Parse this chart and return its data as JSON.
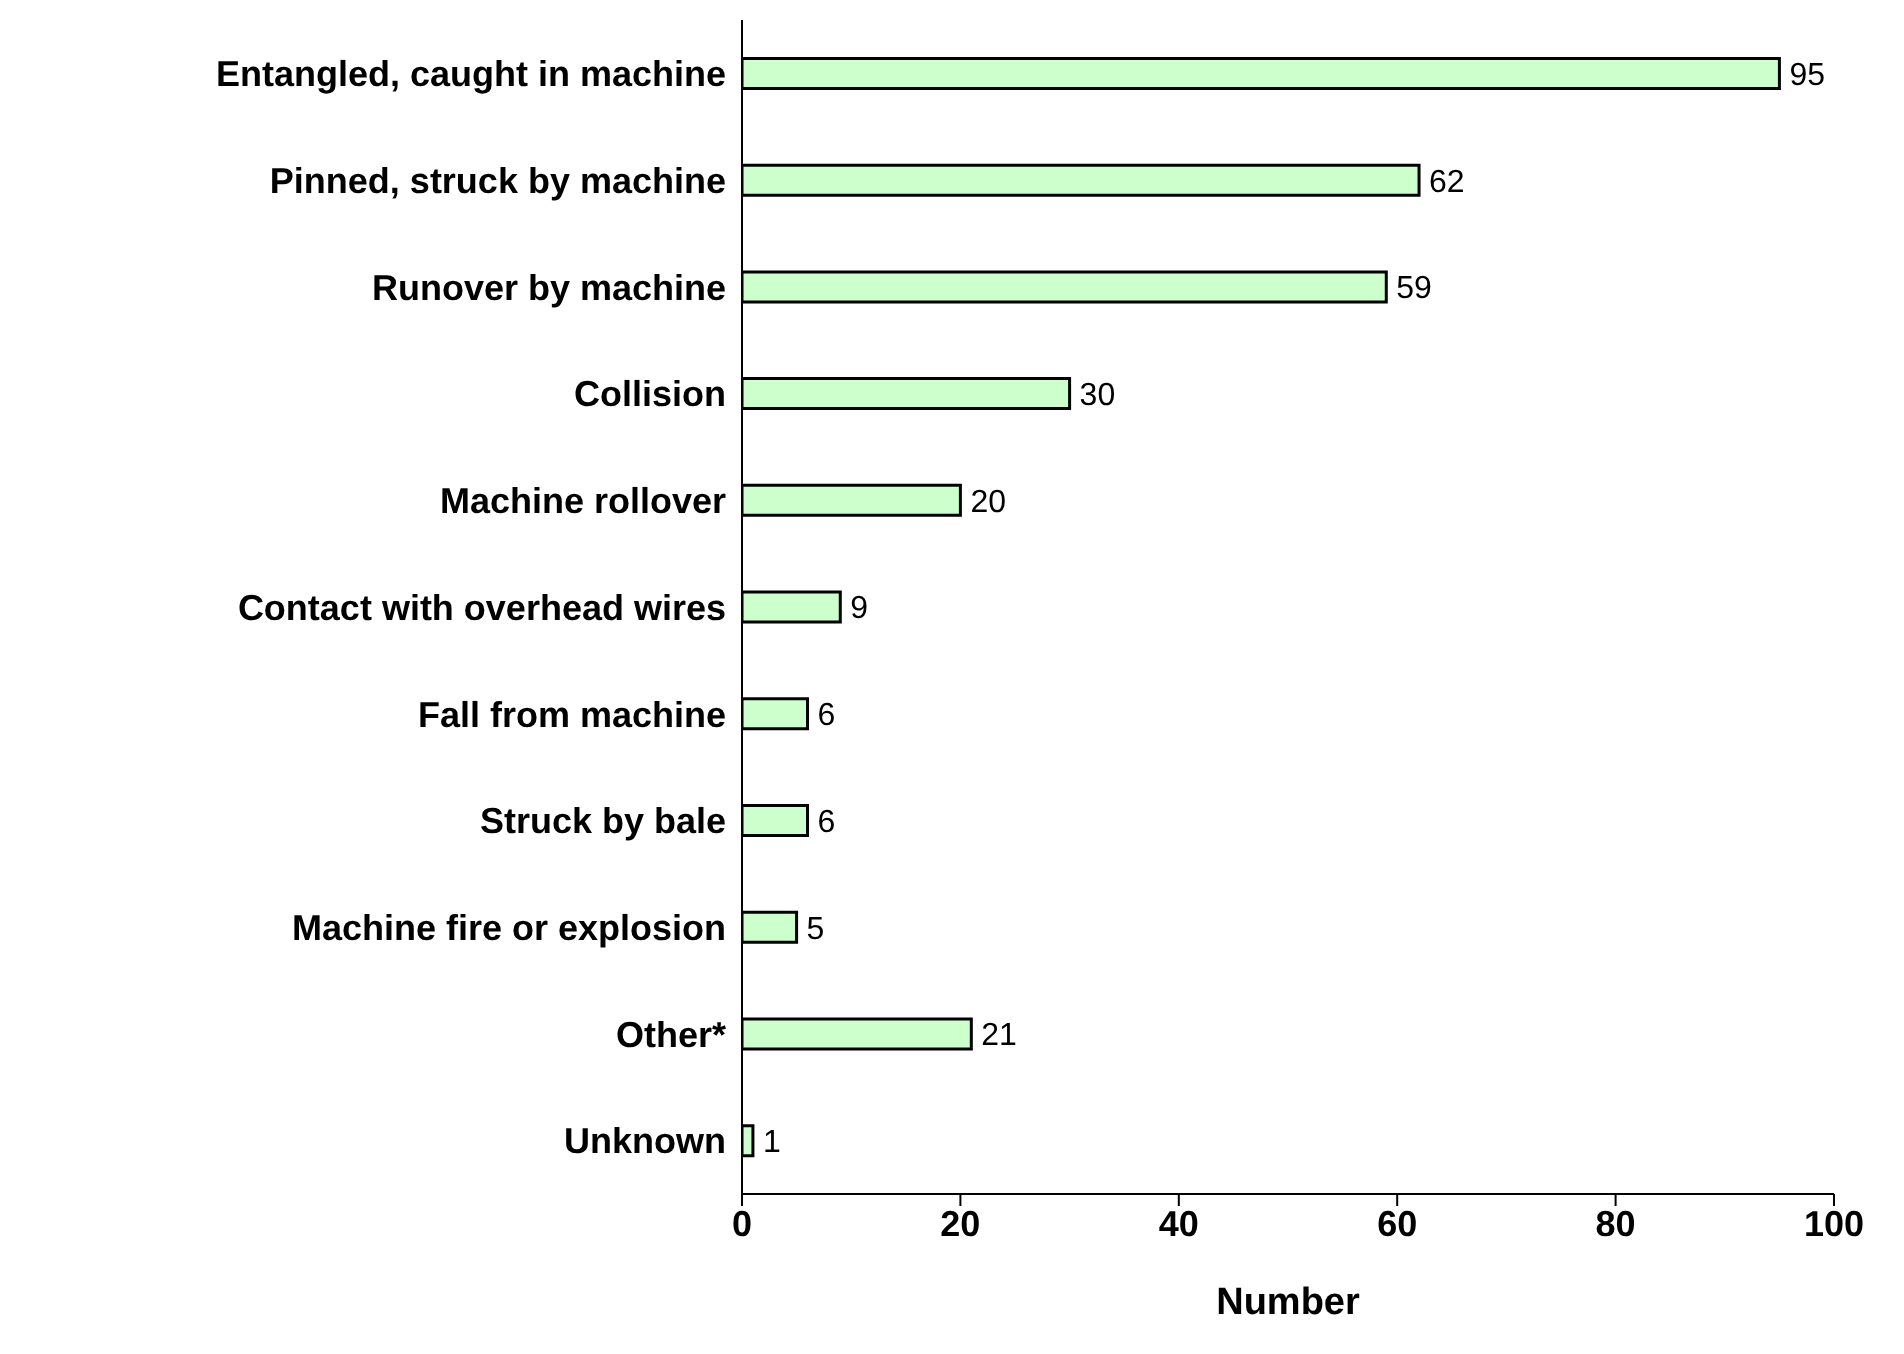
{
  "chart_data": {
    "type": "bar",
    "orientation": "horizontal",
    "xlabel": "Number",
    "categories": [
      "Entangled, caught in machine",
      "Pinned, struck by machine",
      "Runover by machine",
      "Collision",
      "Machine rollover",
      "Contact with overhead wires",
      "Fall from machine",
      "Struck by bale",
      "Machine fire or explosion",
      "Other*",
      "Unknown"
    ],
    "values": [
      95,
      62,
      59,
      30,
      20,
      9,
      6,
      6,
      5,
      21,
      1
    ],
    "color": "#ccffcc",
    "xlim": [
      0,
      100
    ],
    "xticks": [
      0,
      20,
      40,
      60,
      80,
      100
    ],
    "grid": false,
    "legend": false,
    "data_labels": true
  }
}
